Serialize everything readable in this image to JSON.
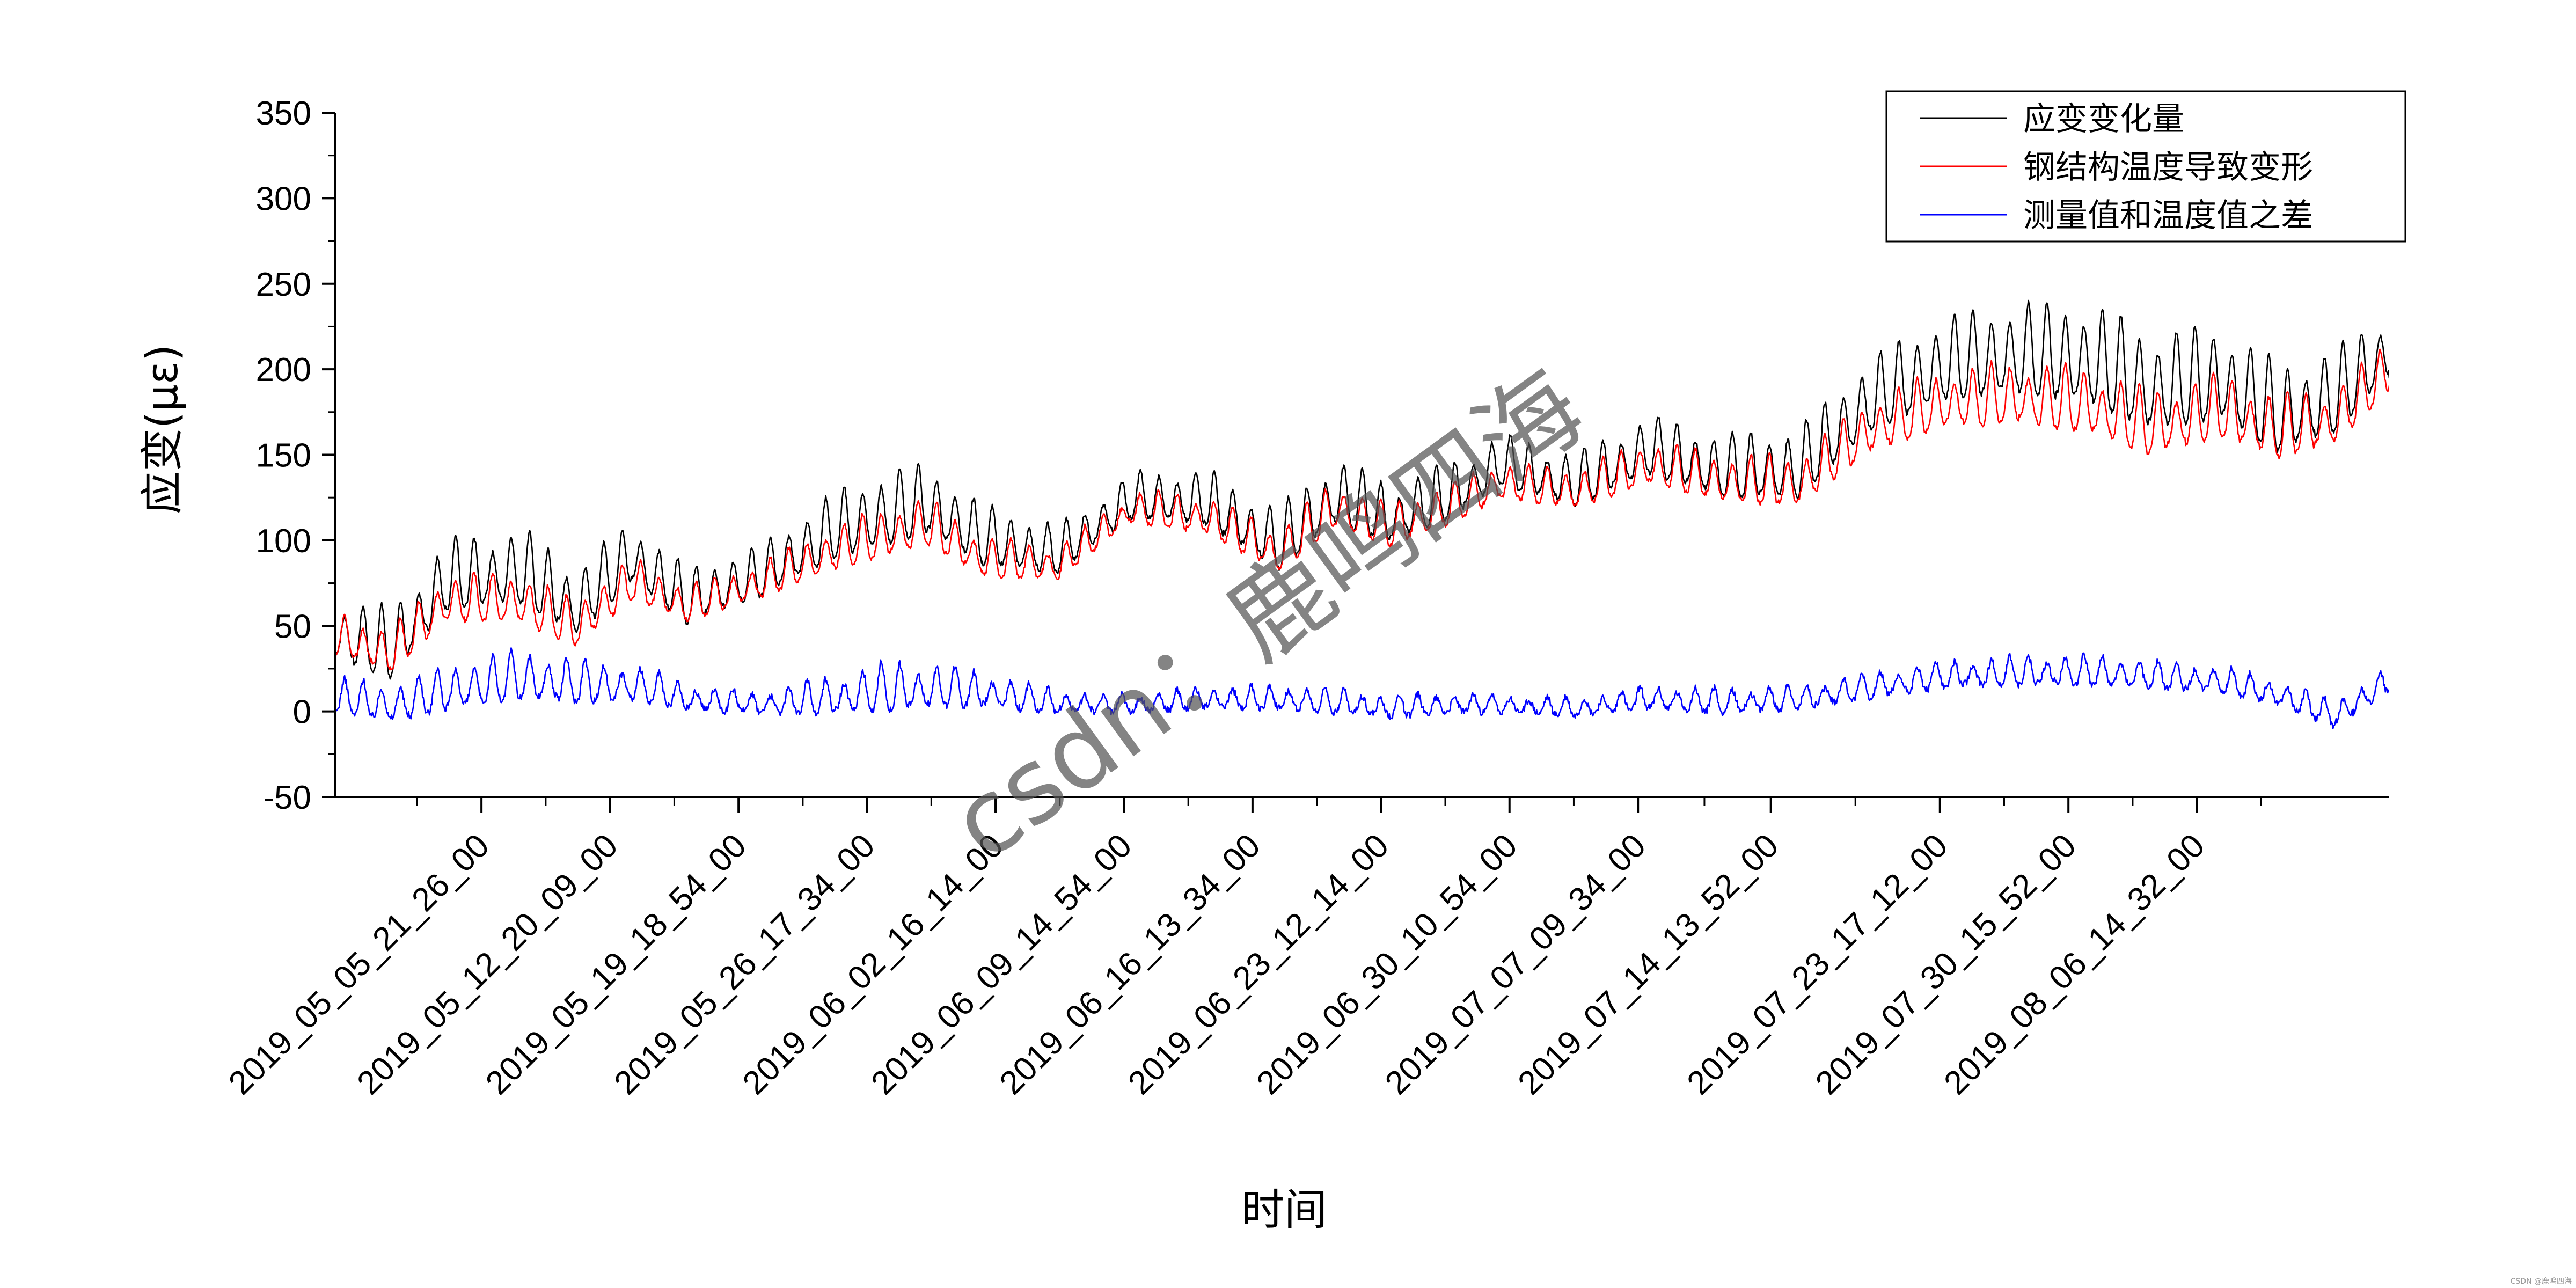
{
  "chart_data": {
    "type": "line",
    "title": "",
    "xlabel": "时间",
    "ylabel": "应变(με)",
    "ylim": [
      -50,
      350
    ],
    "yticks": [
      -50,
      0,
      50,
      100,
      150,
      200,
      250,
      300,
      350
    ],
    "x_start": "2019_04_28",
    "x_end": "2019_08_17",
    "xtick_labels": [
      "2019_05_05_21_26_00",
      "2019_05_12_20_09_00",
      "2019_05_19_18_54_00",
      "2019_05_26_17_34_00",
      "2019_06_02_16_14_00",
      "2019_06_09_14_54_00",
      "2019_06_16_13_34_00",
      "2019_06_23_12_14_00",
      "2019_06_30_10_54_00",
      "2019_07_07_09_34_00",
      "2019_07_14_13_52_00",
      "2019_07_23_17_12_00",
      "2019_07_30_15_52_00",
      "2019_08_06_14_32_00"
    ],
    "grid": false,
    "legend_position": "top-right",
    "series": [
      {
        "name": "应变变化量",
        "color": "#000000",
        "baseline": [
          [
            "2019_04_28",
            40
          ],
          [
            "2019_05_01",
            30
          ],
          [
            "2019_05_04",
            70
          ],
          [
            "2019_05_08",
            75
          ],
          [
            "2019_05_11",
            55
          ],
          [
            "2019_05_14",
            85
          ],
          [
            "2019_05_17",
            60
          ],
          [
            "2019_05_21",
            75
          ],
          [
            "2019_05_25",
            100
          ],
          [
            "2019_05_30",
            115
          ],
          [
            "2019_06_02",
            95
          ],
          [
            "2019_06_06",
            88
          ],
          [
            "2019_06_10",
            120
          ],
          [
            "2019_06_14",
            118
          ],
          [
            "2019_06_18",
            92
          ],
          [
            "2019_06_21",
            120
          ],
          [
            "2019_06_24",
            108
          ],
          [
            "2019_06_27",
            120
          ],
          [
            "2019_06_30",
            140
          ],
          [
            "2019_07_04",
            128
          ],
          [
            "2019_07_08",
            148
          ],
          [
            "2019_07_12",
            135
          ],
          [
            "2019_07_16",
            135
          ],
          [
            "2019_07_20",
            175
          ],
          [
            "2019_07_24",
            195
          ],
          [
            "2019_07_28",
            200
          ],
          [
            "2019_08_01",
            195
          ],
          [
            "2019_08_04",
            180
          ],
          [
            "2019_08_08",
            185
          ],
          [
            "2019_08_11",
            165
          ],
          [
            "2019_08_14",
            175
          ],
          [
            "2019_08_17",
            205
          ]
        ],
        "daily_peak_amplitude": [
          [
            "2019_04_28",
            40
          ],
          [
            "2019_05_08",
            45
          ],
          [
            "2019_05_20",
            30
          ],
          [
            "2019_05_28",
            45
          ],
          [
            "2019_06_08",
            25
          ],
          [
            "2019_06_20",
            40
          ],
          [
            "2019_07_01",
            30
          ],
          [
            "2019_07_12",
            38
          ],
          [
            "2019_07_20",
            45
          ],
          [
            "2019_08_01",
            60
          ],
          [
            "2019_08_10",
            55
          ],
          [
            "2019_08_17",
            45
          ]
        ]
      },
      {
        "name": "钢结构温度导致变形",
        "color": "#ff0000",
        "baseline": [
          [
            "2019_04_28",
            40
          ],
          [
            "2019_05_01",
            30
          ],
          [
            "2019_05_04",
            60
          ],
          [
            "2019_05_08",
            60
          ],
          [
            "2019_05_11",
            45
          ],
          [
            "2019_05_14",
            72
          ],
          [
            "2019_05_17",
            58
          ],
          [
            "2019_05_21",
            72
          ],
          [
            "2019_05_25",
            90
          ],
          [
            "2019_05_30",
            105
          ],
          [
            "2019_06_02",
            85
          ],
          [
            "2019_06_06",
            82
          ],
          [
            "2019_06_10",
            115
          ],
          [
            "2019_06_14",
            110
          ],
          [
            "2019_06_18",
            88
          ],
          [
            "2019_06_21",
            115
          ],
          [
            "2019_06_24",
            103
          ],
          [
            "2019_06_27",
            115
          ],
          [
            "2019_06_30",
            130
          ],
          [
            "2019_07_04",
            125
          ],
          [
            "2019_07_08",
            140
          ],
          [
            "2019_07_12",
            130
          ],
          [
            "2019_07_16",
            128
          ],
          [
            "2019_07_20",
            160
          ],
          [
            "2019_07_24",
            175
          ],
          [
            "2019_07_28",
            178
          ],
          [
            "2019_08_01",
            172
          ],
          [
            "2019_08_04",
            160
          ],
          [
            "2019_08_08",
            170
          ],
          [
            "2019_08_11",
            158
          ],
          [
            "2019_08_14",
            165
          ],
          [
            "2019_08_17",
            195
          ]
        ],
        "daily_peak_amplitude": [
          [
            "2019_04_28",
            25
          ],
          [
            "2019_05_08",
            30
          ],
          [
            "2019_05_20",
            20
          ],
          [
            "2019_05_28",
            30
          ],
          [
            "2019_06_08",
            18
          ],
          [
            "2019_06_20",
            28
          ],
          [
            "2019_07_01",
            22
          ],
          [
            "2019_07_12",
            28
          ],
          [
            "2019_07_20",
            32
          ],
          [
            "2019_08_01",
            40
          ],
          [
            "2019_08_10",
            38
          ],
          [
            "2019_08_17",
            30
          ]
        ]
      },
      {
        "name": "测量值和温度值之差",
        "color": "#0000ff",
        "baseline": [
          [
            "2019_04_28",
            5
          ],
          [
            "2019_05_01",
            0
          ],
          [
            "2019_05_04",
            8
          ],
          [
            "2019_05_08",
            15
          ],
          [
            "2019_05_11",
            12
          ],
          [
            "2019_05_14",
            12
          ],
          [
            "2019_05_17",
            5
          ],
          [
            "2019_05_21",
            2
          ],
          [
            "2019_05_25",
            5
          ],
          [
            "2019_05_30",
            10
          ],
          [
            "2019_06_02",
            8
          ],
          [
            "2019_06_06",
            3
          ],
          [
            "2019_06_10",
            2
          ],
          [
            "2019_06_14",
            5
          ],
          [
            "2019_06_18",
            5
          ],
          [
            "2019_06_21",
            3
          ],
          [
            "2019_06_24",
            0
          ],
          [
            "2019_06_27",
            2
          ],
          [
            "2019_06_30",
            2
          ],
          [
            "2019_07_04",
            0
          ],
          [
            "2019_07_08",
            5
          ],
          [
            "2019_07_12",
            3
          ],
          [
            "2019_07_16",
            5
          ],
          [
            "2019_07_20",
            12
          ],
          [
            "2019_07_24",
            18
          ],
          [
            "2019_07_28",
            20
          ],
          [
            "2019_08_01",
            20
          ],
          [
            "2019_08_04",
            18
          ],
          [
            "2019_08_08",
            15
          ],
          [
            "2019_08_11",
            8
          ],
          [
            "2019_08_14",
            -5
          ],
          [
            "2019_08_17",
            15
          ]
        ],
        "daily_peak_amplitude": [
          [
            "2019_04_28",
            20
          ],
          [
            "2019_05_08",
            30
          ],
          [
            "2019_05_20",
            12
          ],
          [
            "2019_05_28",
            30
          ],
          [
            "2019_06_08",
            10
          ],
          [
            "2019_06_20",
            15
          ],
          [
            "2019_07_01",
            10
          ],
          [
            "2019_07_12",
            15
          ],
          [
            "2019_07_20",
            15
          ],
          [
            "2019_08_01",
            18
          ],
          [
            "2019_08_10",
            15
          ],
          [
            "2019_08_17",
            15
          ]
        ]
      }
    ]
  },
  "watermark": "csdn：鹿鸣四海",
  "corner_mark": "CSDN @鹿鸣四海"
}
